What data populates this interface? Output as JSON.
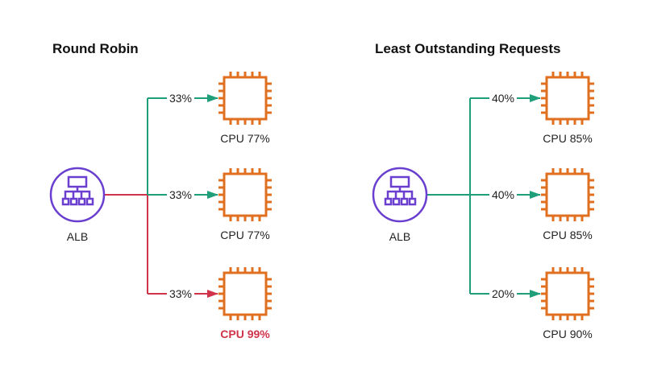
{
  "colors": {
    "green": "#1f9e7a",
    "red": "#d0344a",
    "orange": "#e07020",
    "purple": "#6a3fd0",
    "text": "#222222"
  },
  "panels": [
    {
      "title": "Round Robin",
      "alb_label": "ALB",
      "alb_line_color": "red",
      "targets": [
        {
          "share": "33%",
          "cpu": "CPU 77%",
          "line_color": "green",
          "highlight": false
        },
        {
          "share": "33%",
          "cpu": "CPU 77%",
          "line_color": "green",
          "highlight": false
        },
        {
          "share": "33%",
          "cpu": "CPU 99%",
          "line_color": "red",
          "highlight": true
        }
      ]
    },
    {
      "title": "Least Outstanding Requests",
      "alb_label": "ALB",
      "alb_line_color": "green",
      "targets": [
        {
          "share": "40%",
          "cpu": "CPU 85%",
          "line_color": "green",
          "highlight": false
        },
        {
          "share": "40%",
          "cpu": "CPU 85%",
          "line_color": "green",
          "highlight": false
        },
        {
          "share": "20%",
          "cpu": "CPU 90%",
          "line_color": "green",
          "highlight": false
        }
      ]
    }
  ]
}
